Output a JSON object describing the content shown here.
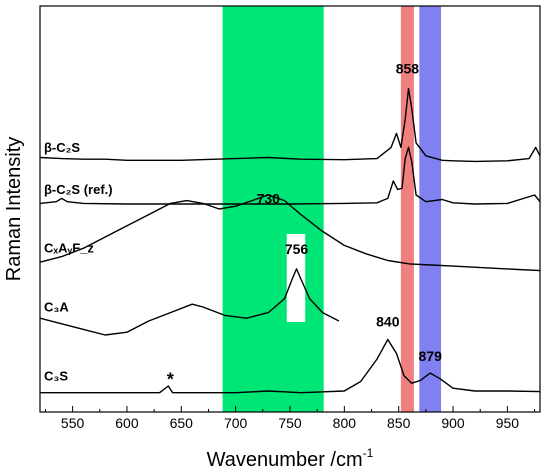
{
  "chart_data": {
    "type": "line",
    "title": "",
    "xlabel": "Wavenumber /cm",
    "xlabel_sup": "-1",
    "ylabel": "Raman Intensity",
    "xlim": [
      520,
      980
    ],
    "x_ticks": [
      550,
      600,
      650,
      700,
      750,
      800,
      850,
      900,
      950
    ],
    "y_ticks": [],
    "grid": false,
    "legend": "none",
    "bands": [
      {
        "x0": 688,
        "x1": 781,
        "color": "#00e676"
      },
      {
        "x0": 852,
        "x1": 864,
        "color": "#f08080"
      },
      {
        "x0": 869,
        "x1": 889,
        "color": "#8080f0"
      }
    ],
    "series": [
      {
        "label": "β-C₂S",
        "offset": 4.3,
        "points": [
          [
            520,
            0.12
          ],
          [
            540,
            0.1
          ],
          [
            560,
            0.09
          ],
          [
            580,
            0.09
          ],
          [
            600,
            0.07
          ],
          [
            650,
            0.07
          ],
          [
            700,
            0.1
          ],
          [
            730,
            0.12
          ],
          [
            760,
            0.09
          ],
          [
            800,
            0.08
          ],
          [
            830,
            0.1
          ],
          [
            843,
            0.3
          ],
          [
            848,
            0.55
          ],
          [
            852,
            0.3
          ],
          [
            856,
            0.8
          ],
          [
            859,
            1.35
          ],
          [
            862,
            1.0
          ],
          [
            866,
            0.38
          ],
          [
            875,
            0.15
          ],
          [
            890,
            0.07
          ],
          [
            900,
            0.06
          ],
          [
            920,
            0.05
          ],
          [
            950,
            0.06
          ],
          [
            970,
            0.1
          ],
          [
            976,
            0.3
          ],
          [
            980,
            0.15
          ]
        ]
      },
      {
        "label": "β-C₂S (ref.)",
        "offset": 3.55,
        "points": [
          [
            520,
            0.05
          ],
          [
            535,
            0.08
          ],
          [
            540,
            0.14
          ],
          [
            545,
            0.08
          ],
          [
            560,
            0.05
          ],
          [
            600,
            0.04
          ],
          [
            650,
            0.04
          ],
          [
            700,
            0.04
          ],
          [
            750,
            0.04
          ],
          [
            800,
            0.05
          ],
          [
            830,
            0.06
          ],
          [
            840,
            0.14
          ],
          [
            845,
            0.45
          ],
          [
            849,
            0.3
          ],
          [
            853,
            0.32
          ],
          [
            856,
            0.85
          ],
          [
            859,
            1.05
          ],
          [
            862,
            0.8
          ],
          [
            866,
            0.2
          ],
          [
            875,
            0.08
          ],
          [
            890,
            0.12
          ],
          [
            900,
            0.06
          ],
          [
            920,
            0.04
          ],
          [
            950,
            0.05
          ],
          [
            975,
            0.2
          ],
          [
            980,
            0.08
          ]
        ]
      },
      {
        "label": "CₓAᵧF_z",
        "offset": 2.5,
        "points": [
          [
            520,
            0.05
          ],
          [
            540,
            0.15
          ],
          [
            560,
            0.3
          ],
          [
            580,
            0.5
          ],
          [
            600,
            0.7
          ],
          [
            620,
            0.9
          ],
          [
            640,
            1.1
          ],
          [
            655,
            1.15
          ],
          [
            670,
            1.1
          ],
          [
            685,
            1.0
          ],
          [
            700,
            1.05
          ],
          [
            715,
            1.15
          ],
          [
            730,
            1.25
          ],
          [
            745,
            1.15
          ],
          [
            760,
            0.9
          ],
          [
            780,
            0.6
          ],
          [
            800,
            0.35
          ],
          [
            820,
            0.2
          ],
          [
            840,
            0.08
          ],
          [
            860,
            0.02
          ],
          [
            880,
            0.0
          ],
          [
            900,
            -0.02
          ],
          [
            930,
            -0.05
          ],
          [
            960,
            -0.08
          ],
          [
            980,
            -0.1
          ]
        ]
      },
      {
        "label": "C₃A",
        "offset": 1.45,
        "points": [
          [
            520,
            0.1
          ],
          [
            540,
            0.0
          ],
          [
            560,
            -0.1
          ],
          [
            580,
            -0.2
          ],
          [
            600,
            -0.15
          ],
          [
            620,
            0.05
          ],
          [
            640,
            0.2
          ],
          [
            660,
            0.35
          ],
          [
            670,
            0.3
          ],
          [
            690,
            0.15
          ],
          [
            710,
            0.1
          ],
          [
            730,
            0.2
          ],
          [
            745,
            0.45
          ],
          [
            752,
            0.8
          ],
          [
            756,
            0.98
          ],
          [
            760,
            0.8
          ],
          [
            768,
            0.45
          ],
          [
            780,
            0.2
          ],
          [
            795,
            0.05
          ]
        ]
      },
      {
        "label": "C₃S",
        "offset": 0.22,
        "points": [
          [
            520,
            0.0
          ],
          [
            560,
            0.0
          ],
          [
            600,
            0.0
          ],
          [
            630,
            0.0
          ],
          [
            638,
            0.12
          ],
          [
            642,
            0.0
          ],
          [
            700,
            0.0
          ],
          [
            730,
            0.03
          ],
          [
            760,
            0.0
          ],
          [
            800,
            0.03
          ],
          [
            815,
            0.2
          ],
          [
            830,
            0.6
          ],
          [
            840,
            0.95
          ],
          [
            848,
            0.7
          ],
          [
            855,
            0.3
          ],
          [
            862,
            0.17
          ],
          [
            870,
            0.22
          ],
          [
            879,
            0.35
          ],
          [
            888,
            0.25
          ],
          [
            900,
            0.08
          ],
          [
            920,
            0.03
          ],
          [
            950,
            0.03
          ],
          [
            980,
            0.02
          ]
        ]
      }
    ],
    "annotations": [
      {
        "text": "858",
        "x": 858,
        "y": 5.92
      },
      {
        "text": "730",
        "x": 730,
        "y": 3.6
      },
      {
        "text": "756",
        "x": 756,
        "y": 2.7
      },
      {
        "text": "840",
        "x": 840,
        "y": 1.4
      },
      {
        "text": "879",
        "x": 879,
        "y": 0.79
      },
      {
        "text": "*",
        "x": 640,
        "y": 0.35
      }
    ]
  }
}
